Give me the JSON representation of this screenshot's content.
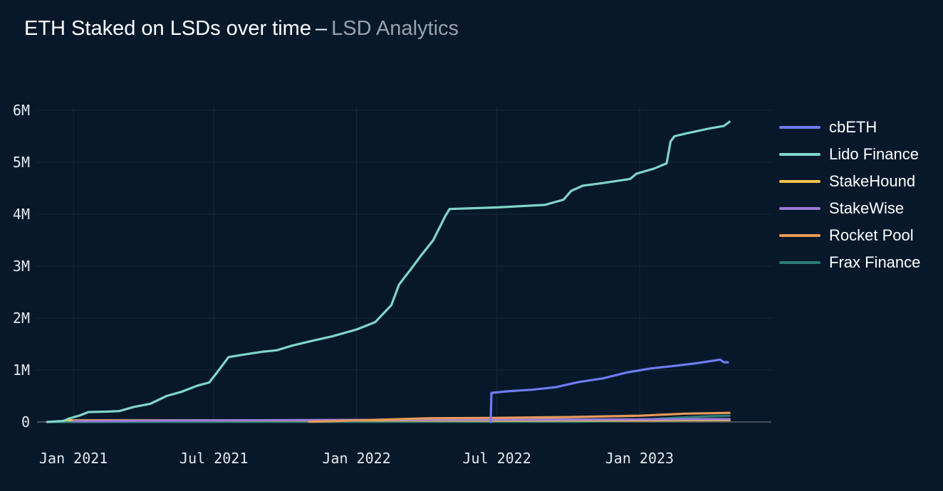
{
  "header": {
    "title": "ETH Staked on LSDs over time",
    "separator": "–",
    "subtitle": "LSD Analytics"
  },
  "chart_data": {
    "type": "line",
    "ylim": [
      0,
      6000000
    ],
    "y_ticks": [
      {
        "value": 0,
        "label": "0"
      },
      {
        "value": 1000000,
        "label": "1M"
      },
      {
        "value": 2000000,
        "label": "2M"
      },
      {
        "value": 3000000,
        "label": "3M"
      },
      {
        "value": 4000000,
        "label": "4M"
      },
      {
        "value": 5000000,
        "label": "5M"
      },
      {
        "value": 6000000,
        "label": "6M"
      }
    ],
    "x_ticks": [
      {
        "value": "2021-01-01",
        "label": "Jan 2021"
      },
      {
        "value": "2021-07-01",
        "label": "Jul 2021"
      },
      {
        "value": "2022-01-01",
        "label": "Jan 2022"
      },
      {
        "value": "2022-07-01",
        "label": "Jul 2022"
      },
      {
        "value": "2023-01-01",
        "label": "Jan 2023"
      }
    ],
    "xlim": [
      "2020-11-15",
      "2023-06-20"
    ],
    "grid": true,
    "legend_position": "right",
    "series": [
      {
        "name": "cbETH",
        "color": "#6f7cf5",
        "points": [
          [
            "2022-06-23",
            0
          ],
          [
            "2022-06-24",
            560000
          ],
          [
            "2022-07-15",
            590000
          ],
          [
            "2022-08-15",
            620000
          ],
          [
            "2022-09-15",
            670000
          ],
          [
            "2022-10-15",
            770000
          ],
          [
            "2022-11-15",
            840000
          ],
          [
            "2022-12-15",
            950000
          ],
          [
            "2023-01-15",
            1030000
          ],
          [
            "2023-02-15",
            1080000
          ],
          [
            "2023-03-15",
            1130000
          ],
          [
            "2023-04-15",
            1200000
          ],
          [
            "2023-04-20",
            1150000
          ],
          [
            "2023-04-25",
            1150000
          ]
        ]
      },
      {
        "name": "Lido Finance",
        "color": "#7fd6c9",
        "points": [
          [
            "2020-11-28",
            0
          ],
          [
            "2020-12-20",
            20000
          ],
          [
            "2020-12-25",
            60000
          ],
          [
            "2021-01-10",
            130000
          ],
          [
            "2021-01-20",
            190000
          ],
          [
            "2021-02-15",
            200000
          ],
          [
            "2021-03-01",
            210000
          ],
          [
            "2021-03-20",
            290000
          ],
          [
            "2021-04-10",
            350000
          ],
          [
            "2021-05-01",
            500000
          ],
          [
            "2021-05-20",
            580000
          ],
          [
            "2021-06-10",
            700000
          ],
          [
            "2021-06-25",
            760000
          ],
          [
            "2021-07-05",
            950000
          ],
          [
            "2021-07-20",
            1250000
          ],
          [
            "2021-08-10",
            1300000
          ],
          [
            "2021-09-01",
            1350000
          ],
          [
            "2021-09-20",
            1380000
          ],
          [
            "2021-10-10",
            1470000
          ],
          [
            "2021-11-01",
            1550000
          ],
          [
            "2021-12-01",
            1650000
          ],
          [
            "2022-01-01",
            1780000
          ],
          [
            "2022-01-25",
            1920000
          ],
          [
            "2022-02-15",
            2250000
          ],
          [
            "2022-02-25",
            2650000
          ],
          [
            "2022-03-10",
            2900000
          ],
          [
            "2022-03-25",
            3200000
          ],
          [
            "2022-04-10",
            3500000
          ],
          [
            "2022-04-25",
            3950000
          ],
          [
            "2022-05-01",
            4100000
          ],
          [
            "2022-07-01",
            4130000
          ],
          [
            "2022-09-01",
            4180000
          ],
          [
            "2022-09-25",
            4280000
          ],
          [
            "2022-10-05",
            4450000
          ],
          [
            "2022-10-20",
            4550000
          ],
          [
            "2022-11-15",
            4600000
          ],
          [
            "2022-12-20",
            4680000
          ],
          [
            "2022-12-28",
            4780000
          ],
          [
            "2023-01-20",
            4880000
          ],
          [
            "2023-02-05",
            4980000
          ],
          [
            "2023-02-10",
            5400000
          ],
          [
            "2023-02-15",
            5500000
          ],
          [
            "2023-03-01",
            5550000
          ],
          [
            "2023-04-01",
            5650000
          ],
          [
            "2023-04-20",
            5700000
          ],
          [
            "2023-04-27",
            5780000
          ]
        ]
      },
      {
        "name": "StakeHound",
        "color": "#f0c24b",
        "points": [
          [
            "2020-12-20",
            30000
          ],
          [
            "2021-06-01",
            32000
          ],
          [
            "2022-01-01",
            30000
          ],
          [
            "2022-07-01",
            28000
          ],
          [
            "2023-01-01",
            30000
          ],
          [
            "2023-04-27",
            35000
          ]
        ]
      },
      {
        "name": "StakeWise",
        "color": "#9b7ad6",
        "points": [
          [
            "2021-01-01",
            15000
          ],
          [
            "2021-06-01",
            30000
          ],
          [
            "2022-01-01",
            40000
          ],
          [
            "2022-07-01",
            45000
          ],
          [
            "2023-01-01",
            50000
          ],
          [
            "2023-04-27",
            55000
          ]
        ]
      },
      {
        "name": "Rocket Pool",
        "color": "#e89a58",
        "points": [
          [
            "2021-11-01",
            5000
          ],
          [
            "2022-01-01",
            30000
          ],
          [
            "2022-04-01",
            70000
          ],
          [
            "2022-07-01",
            80000
          ],
          [
            "2022-10-01",
            95000
          ],
          [
            "2023-01-01",
            120000
          ],
          [
            "2023-03-01",
            160000
          ],
          [
            "2023-04-27",
            175000
          ]
        ]
      },
      {
        "name": "Frax Finance",
        "color": "#2f7c78",
        "points": [
          [
            "2020-11-28",
            0
          ],
          [
            "2022-10-15",
            5000
          ],
          [
            "2022-12-01",
            20000
          ],
          [
            "2023-01-01",
            40000
          ],
          [
            "2023-02-15",
            80000
          ],
          [
            "2023-04-01",
            110000
          ],
          [
            "2023-04-27",
            120000
          ]
        ]
      }
    ]
  }
}
